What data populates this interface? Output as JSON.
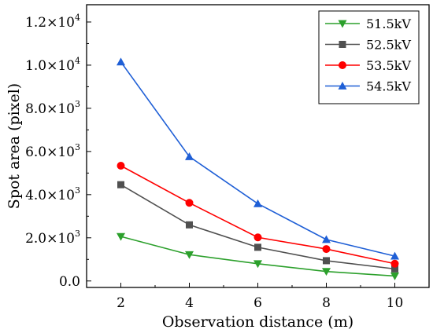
{
  "chart_data": {
    "type": "line",
    "title": "",
    "xlabel": "Observation distance (m)",
    "ylabel": "Spot area (pixel)",
    "x": [
      2,
      4,
      6,
      8,
      10
    ],
    "xticks": [
      "2",
      "4",
      "6",
      "8",
      "10"
    ],
    "xlim": [
      1,
      11
    ],
    "ylim": [
      -300,
      12800
    ],
    "yticks": [
      {
        "value": 0,
        "mantissa": "0.0",
        "exp": ""
      },
      {
        "value": 2000,
        "mantissa": "2.0×10",
        "exp": "3"
      },
      {
        "value": 4000,
        "mantissa": "4.0×10",
        "exp": "3"
      },
      {
        "value": 6000,
        "mantissa": "6.0×10",
        "exp": "3"
      },
      {
        "value": 8000,
        "mantissa": "8.0×10",
        "exp": "3"
      },
      {
        "value": 10000,
        "mantissa": "1.0×10",
        "exp": "4"
      },
      {
        "value": 12000,
        "mantissa": "1.2×10",
        "exp": "4"
      }
    ],
    "grid": false,
    "legend_position": "top-right",
    "series": [
      {
        "name": "51.5kV",
        "color": "#2ca02c",
        "marker": "triangle-down",
        "values": [
          2060,
          1220,
          800,
          440,
          230
        ]
      },
      {
        "name": "52.5kV",
        "color": "#505050",
        "marker": "square",
        "values": [
          4460,
          2600,
          1560,
          940,
          560
        ]
      },
      {
        "name": "53.5kV",
        "color": "#ff0000",
        "marker": "circle",
        "values": [
          5340,
          3620,
          2020,
          1480,
          800
        ]
      },
      {
        "name": "54.5kV",
        "color": "#1f5fd6",
        "marker": "triangle-up",
        "values": [
          10150,
          5760,
          3580,
          1920,
          1150
        ]
      }
    ]
  }
}
